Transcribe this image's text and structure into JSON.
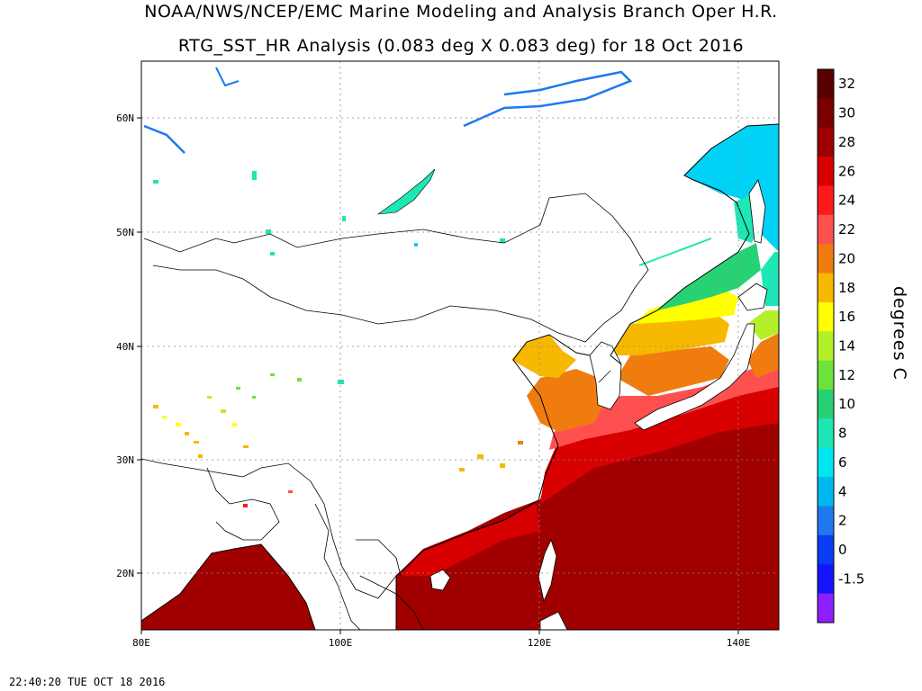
{
  "title_line1": "NOAA/NWS/NCEP/EMC Marine Modeling and Analysis Branch Oper H.R.",
  "title_line2": "RTG_SST_HR Analysis (0.083 deg X 0.083 deg) for 18 Oct 2016",
  "timestamp": "22:40:20  TUE OCT 18 2016",
  "colorbar": {
    "unit": "degrees C",
    "labels": [
      "32",
      "30",
      "28",
      "26",
      "24",
      "22",
      "20",
      "18",
      "16",
      "14",
      "12",
      "10",
      "8",
      "6",
      "4",
      "2",
      "0",
      "-1.5"
    ],
    "colors": [
      "#5a0000",
      "#7a0000",
      "#a00000",
      "#d80000",
      "#ff1a1a",
      "#ff5050",
      "#f07c10",
      "#f7b800",
      "#ffff00",
      "#b4f02a",
      "#6de23a",
      "#28d274",
      "#1ee6b4",
      "#00e6f0",
      "#00b8f0",
      "#1e78f0",
      "#0a3cf5",
      "#1414ff",
      "#8c1eff"
    ]
  },
  "map": {
    "lat_labels": [
      "60N",
      "50N",
      "40N",
      "30N",
      "20N"
    ],
    "lon_labels": [
      "80E",
      "100E",
      "120E",
      "140E"
    ],
    "land_color": "#ffffff",
    "ocean_colors": {
      "tropical": "#a00000",
      "warm": "#d80000",
      "subtropical": "#ff5050",
      "mid": "#f07c10",
      "temperate": "#f7b800",
      "cool": "#6de23a",
      "cold": "#1ee6b4",
      "subarctic": "#00d2f5"
    }
  }
}
